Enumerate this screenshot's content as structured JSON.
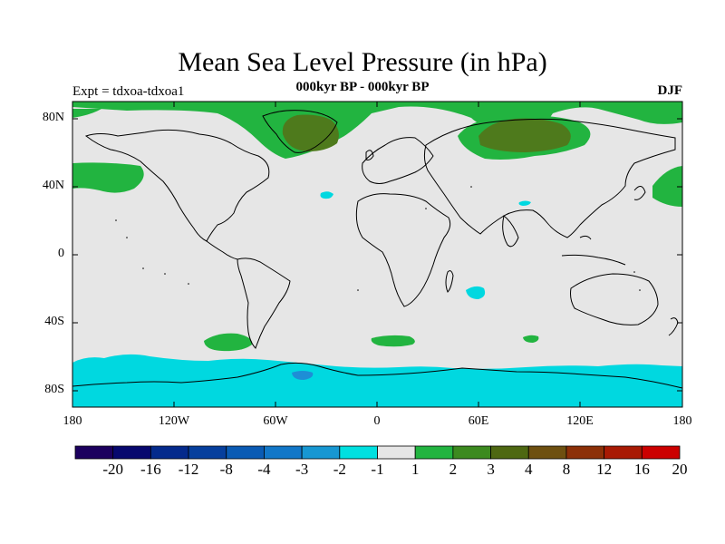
{
  "title": "Mean Sea Level Pressure (in hPa)",
  "subtitle": "000kyr BP - 000kyr BP",
  "experiment": "Expt = tdxoa-tdxoa1",
  "season": "DJF",
  "axes": {
    "lat_labels": [
      "80N",
      "40N",
      "0",
      "40S",
      "80S"
    ],
    "lon_labels": [
      "180",
      "120W",
      "60W",
      "0",
      "60E",
      "120E",
      "180"
    ]
  },
  "colorbar": {
    "labels": [
      "-20",
      "-16",
      "-12",
      "-8",
      "-4",
      "-3",
      "-2",
      "-1",
      "1",
      "2",
      "3",
      "4",
      "8",
      "12",
      "16",
      "20"
    ],
    "colors": [
      "#1c005e",
      "#07086e",
      "#042a8c",
      "#063f9d",
      "#0a5bb4",
      "#1277c8",
      "#1797d2",
      "#00e0e0",
      "#e6e6e6",
      "#22b440",
      "#3c8a1f",
      "#4e6812",
      "#6e5010",
      "#8c3008",
      "#a81a04",
      "#cc0000"
    ]
  },
  "colors": {
    "background": "#e6e6e6",
    "coast": "#000000",
    "pos1": "#22b440",
    "pos2": "#4e7a1c",
    "neg1": "#00d8e0",
    "neg2": "#1e8ed6"
  }
}
